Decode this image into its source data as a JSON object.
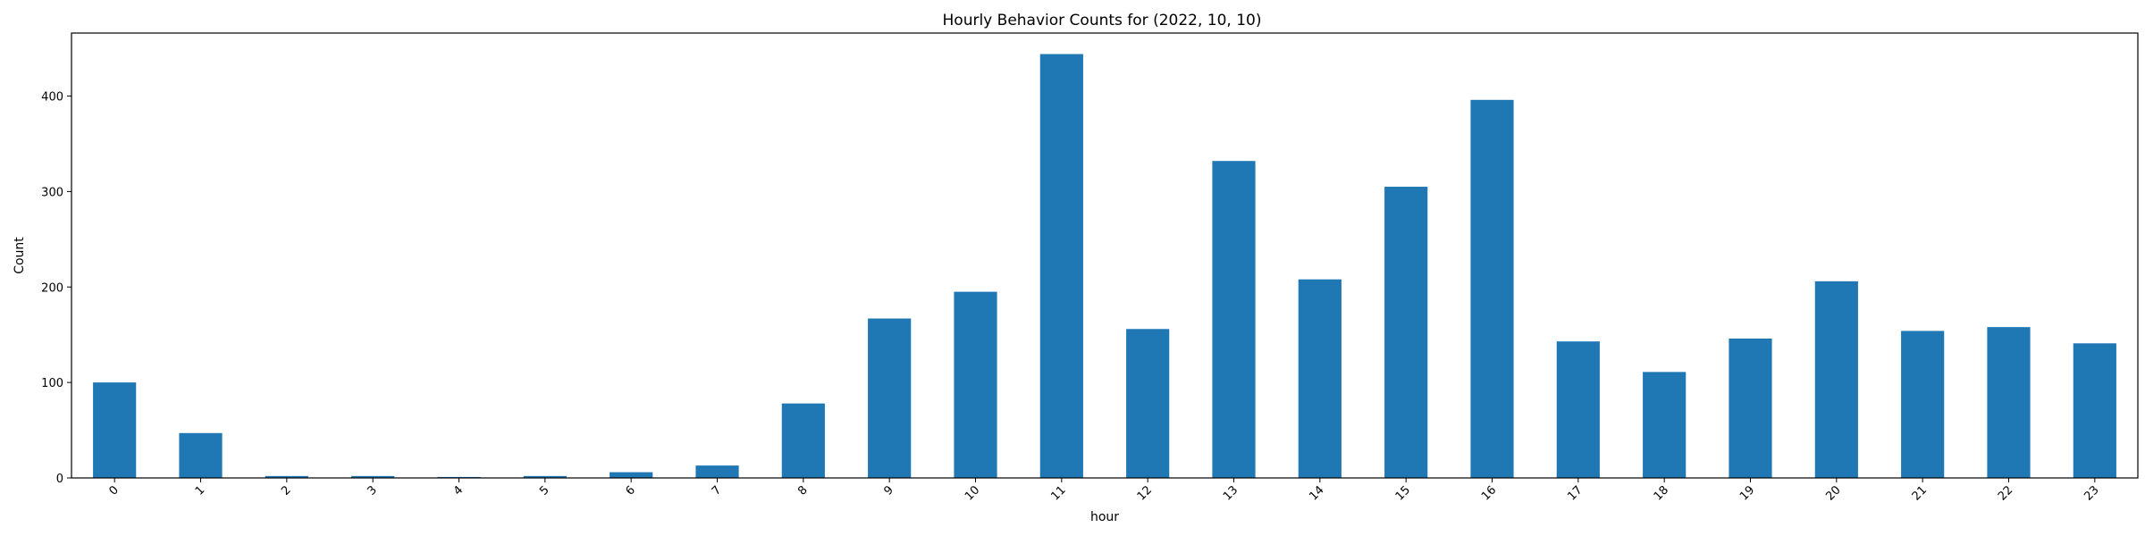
{
  "chart_data": {
    "type": "bar",
    "title": "Hourly Behavior Counts for (2022, 10, 10)",
    "xlabel": "hour",
    "ylabel": "Count",
    "categories": [
      "0",
      "1",
      "2",
      "3",
      "4",
      "5",
      "6",
      "7",
      "8",
      "9",
      "10",
      "11",
      "12",
      "13",
      "14",
      "15",
      "16",
      "17",
      "18",
      "19",
      "20",
      "21",
      "22",
      "23"
    ],
    "values": [
      100,
      47,
      2,
      2,
      1,
      2,
      6,
      13,
      78,
      167,
      195,
      444,
      156,
      332,
      208,
      305,
      396,
      143,
      111,
      146,
      206,
      154,
      158,
      141
    ],
    "ylim": [
      0,
      466
    ],
    "yticks": [
      0,
      100,
      200,
      300,
      400
    ],
    "bar_color": "#1f77b4",
    "grid": false,
    "legend": "none"
  }
}
